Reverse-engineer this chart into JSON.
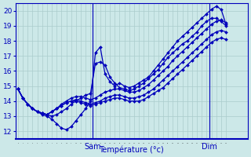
{
  "title": "",
  "xlabel": "Température (°c)",
  "ylabel": "",
  "ylim": [
    11.5,
    20.5
  ],
  "xlim": [
    -0.5,
    47.5
  ],
  "yticks": [
    12,
    13,
    14,
    15,
    16,
    17,
    18,
    19,
    20
  ],
  "background_color": "#cce8e8",
  "grid_color": "#aacccc",
  "line_color": "#0000bb",
  "marker": "D",
  "markersize": 2.0,
  "linewidth": 0.9,
  "sam_x": 15.5,
  "dim_x": 39.5,
  "series": [
    [
      14.8,
      14.2,
      13.8,
      13.5,
      13.3,
      13.1,
      13.0,
      12.8,
      12.5,
      12.2,
      12.1,
      12.3,
      12.7,
      13.1,
      13.5,
      14.0,
      17.2,
      17.6,
      15.8,
      15.3,
      15.0,
      15.2,
      15.0,
      14.9,
      15.0,
      15.2,
      15.4,
      15.6,
      16.0,
      16.4,
      16.8,
      17.2,
      17.6,
      18.0,
      18.3,
      18.6,
      18.9,
      19.2,
      19.5,
      19.8,
      20.1,
      20.3,
      20.1,
      19.1
    ],
    [
      14.8,
      14.2,
      13.8,
      13.5,
      13.3,
      13.2,
      13.1,
      13.0,
      13.1,
      13.3,
      13.5,
      13.8,
      14.0,
      14.2,
      14.4,
      14.5,
      16.5,
      16.6,
      16.4,
      15.6,
      15.2,
      14.9,
      14.8,
      14.7,
      14.8,
      15.0,
      15.2,
      15.5,
      15.8,
      16.1,
      16.5,
      16.9,
      17.2,
      17.5,
      17.8,
      18.0,
      18.3,
      18.6,
      19.0,
      19.3,
      19.5,
      19.5,
      19.3,
      19.0
    ],
    [
      14.8,
      14.2,
      13.8,
      13.5,
      13.3,
      13.2,
      13.1,
      13.3,
      13.5,
      13.8,
      14.0,
      14.2,
      14.3,
      14.3,
      14.2,
      14.1,
      14.2,
      14.4,
      14.6,
      14.7,
      14.8,
      14.8,
      14.7,
      14.6,
      14.6,
      14.7,
      14.9,
      15.1,
      15.4,
      15.7,
      16.0,
      16.3,
      16.7,
      17.0,
      17.3,
      17.6,
      17.9,
      18.2,
      18.5,
      18.8,
      19.1,
      19.3,
      19.4,
      19.2
    ],
    [
      14.8,
      14.2,
      13.8,
      13.5,
      13.3,
      13.2,
      13.1,
      13.3,
      13.5,
      13.7,
      13.9,
      14.0,
      14.1,
      14.0,
      13.9,
      13.8,
      13.9,
      14.0,
      14.2,
      14.3,
      14.4,
      14.4,
      14.3,
      14.2,
      14.2,
      14.3,
      14.4,
      14.6,
      14.8,
      15.1,
      15.4,
      15.7,
      16.0,
      16.3,
      16.6,
      16.9,
      17.2,
      17.5,
      17.8,
      18.1,
      18.4,
      18.6,
      18.7,
      18.6
    ],
    [
      14.8,
      14.2,
      13.8,
      13.5,
      13.3,
      13.2,
      13.1,
      13.3,
      13.5,
      13.7,
      13.9,
      14.0,
      14.0,
      13.9,
      13.8,
      13.7,
      13.8,
      13.9,
      14.0,
      14.1,
      14.2,
      14.2,
      14.1,
      14.0,
      14.0,
      14.0,
      14.1,
      14.3,
      14.5,
      14.7,
      14.9,
      15.2,
      15.5,
      15.8,
      16.1,
      16.4,
      16.7,
      17.0,
      17.3,
      17.6,
      17.9,
      18.1,
      18.2,
      18.1
    ]
  ]
}
